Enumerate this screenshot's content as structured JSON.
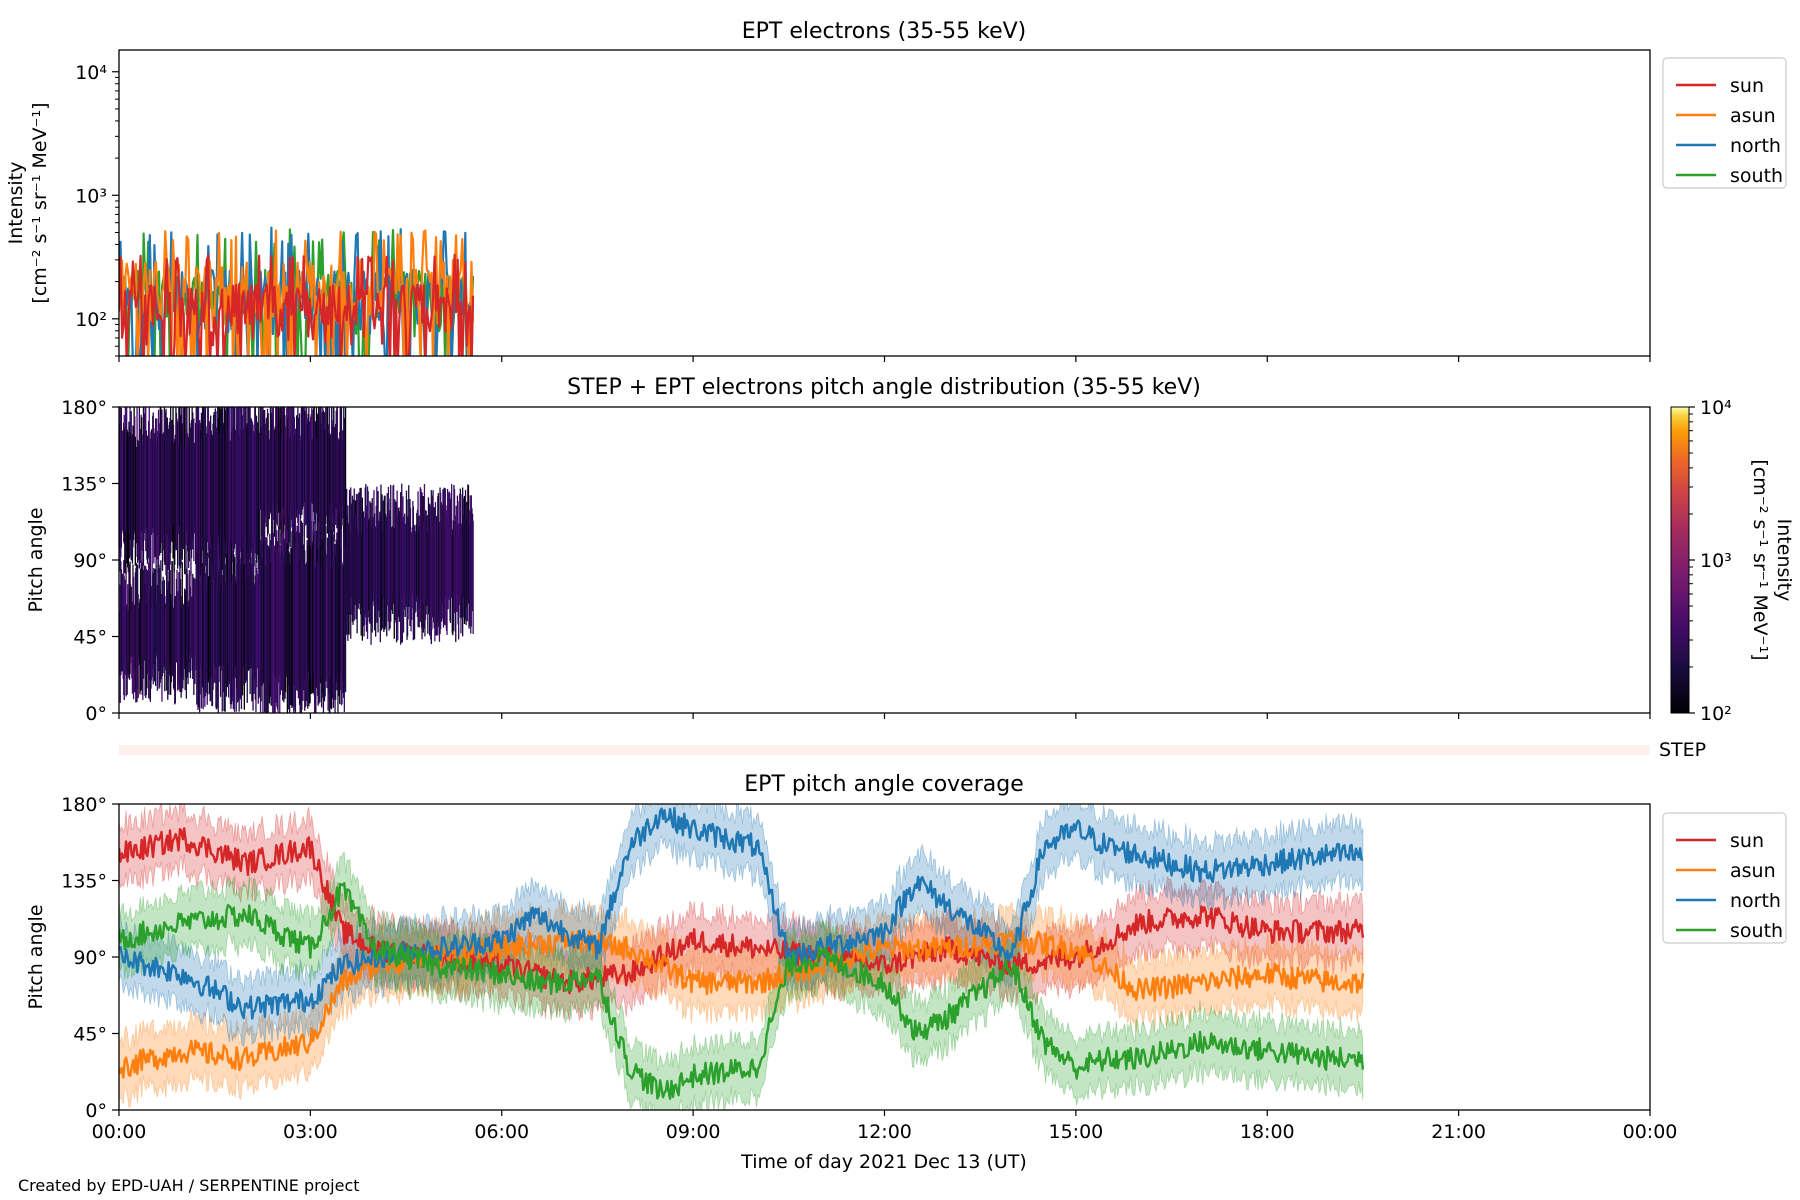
{
  "figure": {
    "credit": "Created by EPD-UAH / SERPENTINE project",
    "xlabel": "Time of day 2021 Dec 13 (UT)",
    "xticks": [
      "00:00",
      "03:00",
      "06:00",
      "09:00",
      "12:00",
      "15:00",
      "18:00",
      "21:00",
      "00:00"
    ]
  },
  "colors": {
    "sun": "#d62728",
    "asun": "#ff7f0e",
    "north": "#1f77b4",
    "south": "#2ca02c"
  },
  "chart_data": [
    {
      "type": "line",
      "title": "EPT electrons (35-55 keV)",
      "ylabel": [
        "Intensity",
        "[cm⁻² s⁻¹ sr⁻¹ MeV⁻¹]"
      ],
      "yscale": "log",
      "ylim": [
        50,
        15000
      ],
      "yticks": [
        "10²",
        "10³",
        "10⁴"
      ],
      "x_unit": "hours since 2021-12-13 00:00 UT",
      "xlim": [
        0,
        24
      ],
      "legend": {
        "placement": "outside-right",
        "entries": [
          "sun",
          "asun",
          "north",
          "south"
        ]
      },
      "series": [
        {
          "name": "sun",
          "x_range": [
            0,
            5.55
          ],
          "typical": [
            60,
            190
          ],
          "peaks": [
            280,
            330
          ]
        },
        {
          "name": "asun",
          "x_range": [
            0,
            5.55
          ],
          "typical": [
            80,
            300
          ],
          "peaks": [
            420,
            520
          ]
        },
        {
          "name": "north",
          "x_range": [
            0,
            5.55
          ],
          "typical": [
            70,
            250
          ],
          "peaks": [
            380,
            560
          ]
        },
        {
          "name": "south",
          "x_range": [
            0,
            5.55
          ],
          "typical": [
            70,
            250
          ],
          "peaks": [
            380,
            540
          ]
        }
      ]
    },
    {
      "type": "heatmap",
      "title": "STEP + EPT electrons pitch angle distribution (35-55 keV)",
      "ylabel": "Pitch angle",
      "ylim": [
        0,
        180
      ],
      "yticks": [
        "0°",
        "45°",
        "90°",
        "135°",
        "180°"
      ],
      "xlim": [
        0,
        24
      ],
      "data_x_range": [
        0,
        5.55
      ],
      "colorbar": {
        "label": [
          "Intensity",
          "[cm⁻² s⁻¹ sr⁻¹ MeV⁻¹]"
        ],
        "scale": "log",
        "range": [
          100,
          10000
        ],
        "ticks": [
          "10²",
          "10³",
          "10⁴"
        ],
        "colormap": "inferno"
      },
      "step_label": "STEP",
      "segments": [
        {
          "t": [
            0.0,
            1.2
          ],
          "pa": [
            [
              20,
              75
            ],
            [
              95,
              170
            ]
          ]
        },
        {
          "t": [
            1.2,
            2.2
          ],
          "pa": [
            [
              15,
              90
            ],
            [
              90,
              175
            ]
          ]
        },
        {
          "t": [
            2.2,
            3.55
          ],
          "pa": [
            [
              10,
              100
            ],
            [
              110,
              175
            ]
          ]
        },
        {
          "t": [
            3.55,
            5.55
          ],
          "pa": [
            [
              55,
              120
            ]
          ]
        }
      ]
    },
    {
      "type": "line",
      "title": "EPT pitch angle coverage",
      "ylabel": "Pitch angle",
      "ylim": [
        0,
        180
      ],
      "yticks": [
        "0°",
        "45°",
        "90°",
        "135°",
        "180°"
      ],
      "xlim": [
        0,
        24
      ],
      "band_halfwidth": 15,
      "legend": {
        "placement": "outside-right",
        "entries": [
          "sun",
          "asun",
          "north",
          "south"
        ]
      },
      "series": [
        {
          "name": "sun",
          "x": [
            0,
            1,
            2,
            3,
            3.5,
            4,
            5,
            6,
            7,
            8,
            9,
            10,
            11,
            12,
            13,
            14,
            15,
            16,
            17,
            18,
            19,
            19.5
          ],
          "y": [
            150,
            160,
            145,
            155,
            105,
            95,
            90,
            85,
            75,
            80,
            100,
            95,
            90,
            85,
            95,
            85,
            90,
            110,
            115,
            105,
            105,
            105
          ]
        },
        {
          "name": "asun",
          "x": [
            0,
            1,
            2,
            3,
            3.5,
            4,
            5,
            6,
            7,
            8,
            9,
            10,
            11,
            12,
            13,
            14,
            15,
            16,
            17,
            18,
            19,
            19.5
          ],
          "y": [
            25,
            35,
            30,
            40,
            75,
            85,
            90,
            95,
            100,
            95,
            75,
            75,
            85,
            95,
            95,
            100,
            95,
            70,
            75,
            80,
            75,
            75
          ]
        },
        {
          "name": "north",
          "x": [
            0,
            1,
            2,
            3,
            3.5,
            4,
            5,
            6,
            6.5,
            7,
            7.5,
            8,
            8.5,
            9,
            10,
            10.5,
            11,
            12,
            12.5,
            13,
            14,
            14.5,
            15,
            15.5,
            16,
            17,
            18,
            19,
            19.5
          ],
          "y": [
            90,
            80,
            60,
            65,
            85,
            90,
            95,
            100,
            115,
            105,
            95,
            155,
            175,
            165,
            155,
            90,
            95,
            105,
            135,
            120,
            90,
            155,
            165,
            155,
            150,
            140,
            145,
            150,
            150
          ]
        },
        {
          "name": "south",
          "x": [
            0,
            1,
            2,
            3,
            3.5,
            4,
            5,
            6,
            6.5,
            7,
            7.5,
            8,
            8.5,
            9,
            10,
            10.5,
            11,
            12,
            12.5,
            13,
            14,
            14.5,
            15,
            15.5,
            16,
            17,
            18,
            19,
            19.5
          ],
          "y": [
            100,
            110,
            115,
            95,
            130,
            95,
            85,
            80,
            75,
            75,
            80,
            25,
            10,
            20,
            25,
            85,
            90,
            75,
            45,
            55,
            85,
            40,
            25,
            30,
            30,
            40,
            35,
            30,
            30
          ]
        }
      ]
    }
  ]
}
